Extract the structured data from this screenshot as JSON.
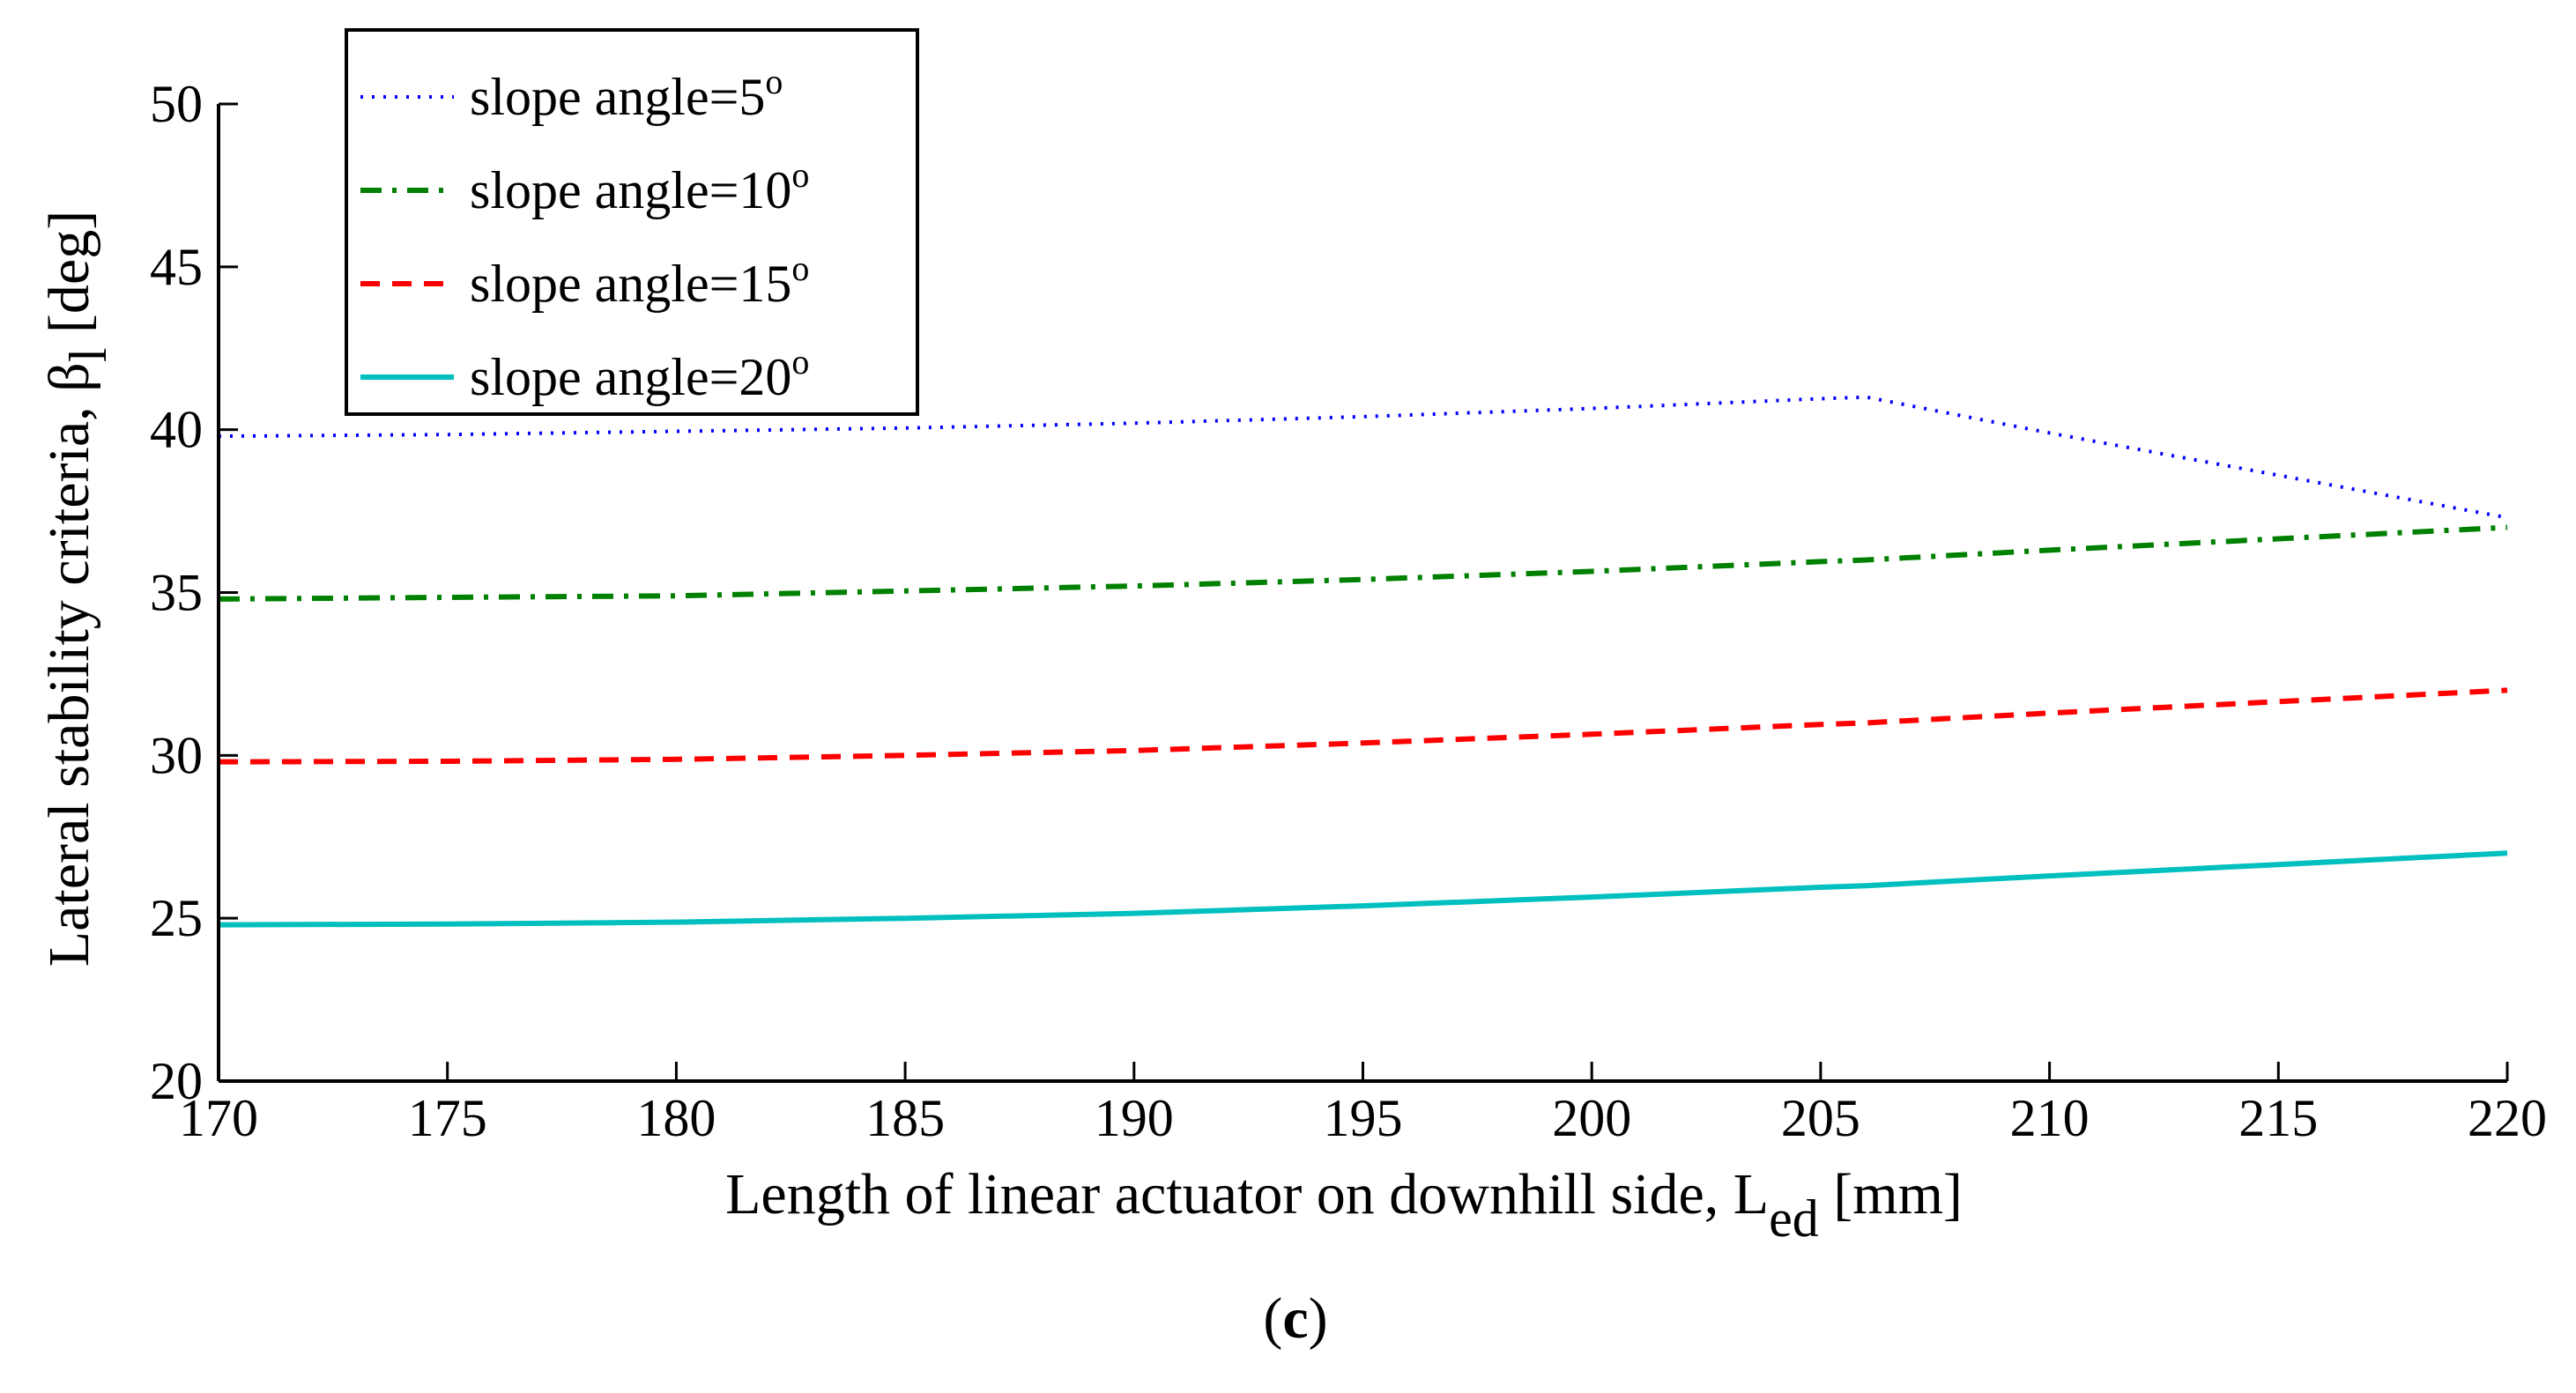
{
  "chart_data": {
    "type": "line",
    "xlabel": "Length of linear actuator on downhill side, L",
    "xlabel_sub": "ed",
    "xlabel_unit": "[mm]",
    "ylabel": "Lateral stability criteria,",
    "ylabel_symbol": "β",
    "ylabel_sub": "l",
    "ylabel_unit": "[deg]",
    "xlim": [
      170,
      220
    ],
    "ylim": [
      20,
      50
    ],
    "xticks": [
      170,
      175,
      180,
      185,
      190,
      195,
      200,
      205,
      210,
      215,
      220
    ],
    "yticks": [
      20,
      25,
      30,
      35,
      40,
      45,
      50
    ],
    "x": [
      170,
      175,
      180,
      185,
      190,
      195,
      200,
      205,
      206,
      210,
      215,
      220
    ],
    "series": [
      {
        "name": "slope angle=5",
        "sup": "o",
        "color": "#0000ff",
        "style": "dotted",
        "values": [
          39.8,
          39.85,
          39.95,
          40.05,
          40.2,
          40.4,
          40.65,
          40.95,
          41.0,
          39.9,
          38.6,
          37.3
        ]
      },
      {
        "name": "slope angle=10",
        "sup": "o",
        "color": "#008000",
        "style": "dashdot",
        "values": [
          34.8,
          34.85,
          34.9,
          35.05,
          35.2,
          35.4,
          35.65,
          35.95,
          36.0,
          36.3,
          36.65,
          37.0
        ]
      },
      {
        "name": "slope angle=15",
        "sup": "o",
        "color": "#ff0000",
        "style": "dashed",
        "values": [
          29.8,
          29.82,
          29.88,
          30.0,
          30.15,
          30.38,
          30.65,
          30.95,
          31.0,
          31.3,
          31.65,
          32.0
        ]
      },
      {
        "name": "slope angle=20",
        "sup": "o",
        "color": "#00bfbf",
        "style": "solid",
        "values": [
          24.8,
          24.82,
          24.88,
          25.0,
          25.15,
          25.38,
          25.65,
          25.95,
          26.0,
          26.3,
          26.65,
          27.0
        ]
      }
    ],
    "legend_position": "top-left",
    "grid": false
  },
  "caption": {
    "open": "(",
    "letter": "c",
    "close": ")"
  }
}
